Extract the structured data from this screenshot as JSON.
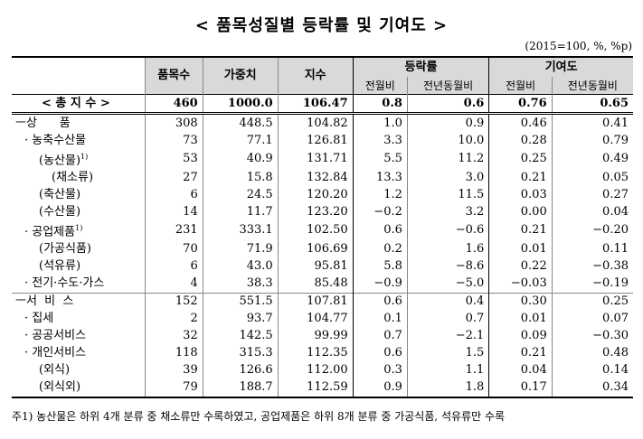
{
  "header": {
    "title": "< 품목성질별 등락률 및 기여도 >",
    "unit": "(2015=100, %, %p)"
  },
  "table": {
    "columns": [
      "품목수",
      "가중치",
      "지수"
    ],
    "groups": [
      {
        "name": "등락률",
        "subs": [
          "전월비",
          "전년동월비"
        ]
      },
      {
        "name": "기여도",
        "subs": [
          "전월비",
          "전년동월비"
        ]
      }
    ],
    "rows": [
      {
        "label": "< 총 지 수 >",
        "values": [
          "460",
          "1000.0",
          "106.47",
          "0.8",
          "0.6",
          "0.76",
          "0.65"
        ]
      },
      {
        "label": "ㅡ상      품",
        "values": [
          "308",
          "448.5",
          "104.82",
          "1.0",
          "0.9",
          "0.46",
          "0.41"
        ]
      },
      {
        "label": "· 농축수산물",
        "values": [
          "73",
          "77.1",
          "126.81",
          "3.3",
          "10.0",
          "0.28",
          "0.79"
        ]
      },
      {
        "label": "(농산물)",
        "note": "1)",
        "values": [
          "53",
          "40.9",
          "131.71",
          "5.5",
          "11.2",
          "0.25",
          "0.49"
        ]
      },
      {
        "label": "(채소류)",
        "values": [
          "27",
          "15.8",
          "132.84",
          "13.3",
          "3.0",
          "0.21",
          "0.05"
        ]
      },
      {
        "label": "(축산물)",
        "values": [
          "6",
          "24.5",
          "120.20",
          "1.2",
          "11.5",
          "0.03",
          "0.27"
        ]
      },
      {
        "label": "(수산물)",
        "values": [
          "14",
          "11.7",
          "123.20",
          "−0.2",
          "3.2",
          "0.00",
          "0.04"
        ]
      },
      {
        "label": "· 공업제품",
        "note": "1)",
        "values": [
          "231",
          "333.1",
          "102.50",
          "0.6",
          "−0.6",
          "0.21",
          "−0.20"
        ]
      },
      {
        "label": "(가공식품)",
        "values": [
          "70",
          "71.9",
          "106.69",
          "0.2",
          "1.6",
          "0.01",
          "0.11"
        ]
      },
      {
        "label": "(석유류)",
        "values": [
          "6",
          "43.0",
          "95.81",
          "5.8",
          "−8.6",
          "0.22",
          "−0.38"
        ]
      },
      {
        "label": "· 전기·수도·가스",
        "values": [
          "4",
          "38.3",
          "85.48",
          "−0.9",
          "−5.0",
          "−0.03",
          "−0.19"
        ]
      },
      {
        "label": "ㅡ서  비  스",
        "values": [
          "152",
          "551.5",
          "107.81",
          "0.6",
          "0.4",
          "0.30",
          "0.25"
        ]
      },
      {
        "label": "· 집세",
        "values": [
          "2",
          "93.7",
          "104.77",
          "0.1",
          "0.7",
          "0.01",
          "0.07"
        ]
      },
      {
        "label": "· 공공서비스",
        "values": [
          "32",
          "142.5",
          "99.99",
          "0.7",
          "−2.1",
          "0.09",
          "−0.30"
        ]
      },
      {
        "label": "· 개인서비스",
        "values": [
          "118",
          "315.3",
          "112.35",
          "0.6",
          "1.5",
          "0.21",
          "0.48"
        ]
      },
      {
        "label": "(외식)",
        "values": [
          "39",
          "126.6",
          "112.00",
          "0.3",
          "1.1",
          "0.04",
          "0.14"
        ]
      },
      {
        "label": "(외식외)",
        "values": [
          "79",
          "188.7",
          "112.59",
          "0.9",
          "1.8",
          "0.17",
          "0.34"
        ]
      }
    ]
  },
  "footnote": "주1) 농산물은 하위 4개 분류 중 채소류만 수록하였고, 공업제품은 하위 8개 분류 중 가공식품, 석유류만 수록"
}
